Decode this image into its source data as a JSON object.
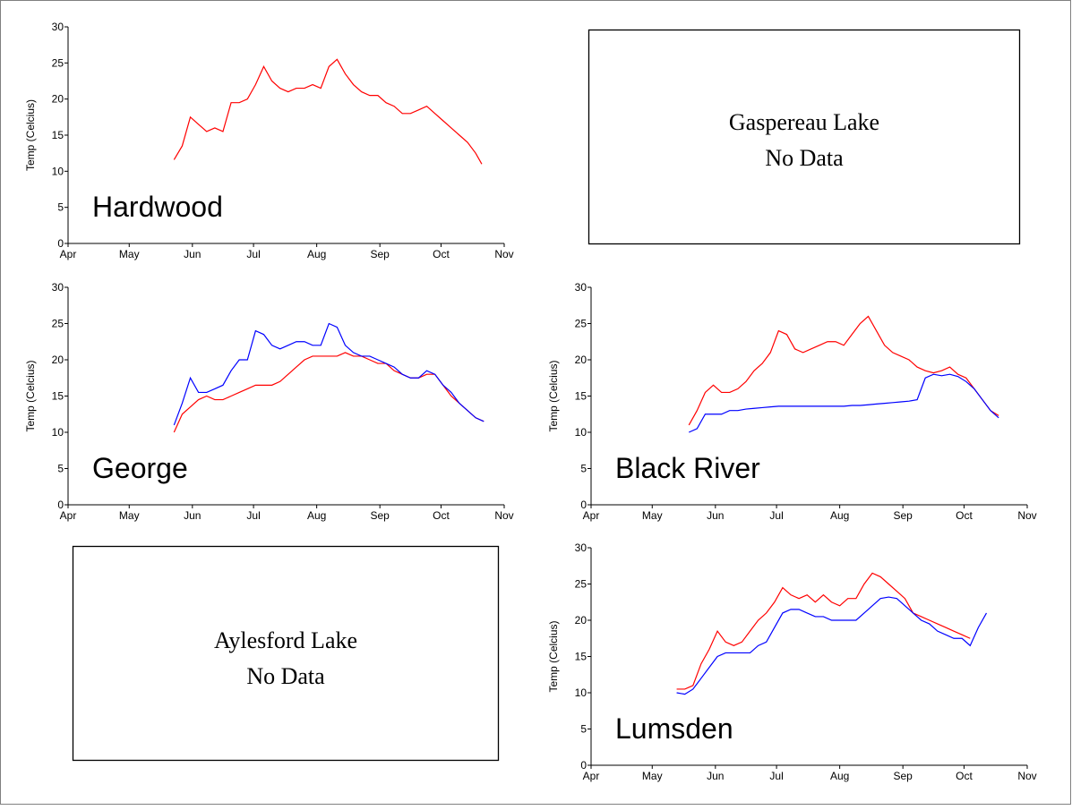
{
  "chart_data": [
    {
      "type": "line",
      "annotation": "Hardwood",
      "y_label": "Temp (Celcius)",
      "x": [
        52,
        56,
        60,
        64,
        68,
        72,
        76,
        80,
        84,
        88,
        92,
        96,
        100,
        104,
        108,
        112,
        116,
        120,
        124,
        128,
        132,
        136,
        140,
        144,
        148,
        152,
        156,
        160,
        164,
        168,
        172,
        176,
        180,
        184,
        188,
        192,
        196,
        200,
        203
      ],
      "series": [
        {
          "color": "#ff0000",
          "values": [
            11.6,
            13.5,
            17.5,
            16.5,
            15.5,
            16,
            15.5,
            19.5,
            19.5,
            20,
            22,
            24.5,
            22.5,
            21.5,
            21,
            21.5,
            21.5,
            22,
            21.5,
            24.5,
            25.5,
            23.5,
            22,
            21,
            20.5,
            20.5,
            19.5,
            19,
            18,
            18,
            18.5,
            19,
            18,
            17,
            16,
            15,
            14,
            12.5,
            11
          ]
        }
      ],
      "xlim": [
        0,
        214
      ],
      "xticks": [
        {
          "value": 0,
          "label": "Apr"
        },
        {
          "value": 30,
          "label": "May"
        },
        {
          "value": 61,
          "label": "Jun"
        },
        {
          "value": 91,
          "label": "Jul"
        },
        {
          "value": 122,
          "label": "Aug"
        },
        {
          "value": 153,
          "label": "Sep"
        },
        {
          "value": 183,
          "label": "Oct"
        },
        {
          "value": 214,
          "label": "Nov"
        }
      ],
      "ylim": [
        0,
        30
      ],
      "yticks": [
        0,
        5,
        10,
        15,
        20,
        25,
        30
      ],
      "grid": false
    },
    {
      "type": "line",
      "annotation": "George",
      "y_label": "Temp (Celcius)",
      "x": [
        52,
        56,
        60,
        64,
        68,
        72,
        76,
        80,
        84,
        88,
        92,
        96,
        100,
        104,
        108,
        112,
        116,
        120,
        124,
        128,
        132,
        136,
        140,
        144,
        148,
        152,
        156,
        160,
        164,
        168,
        172,
        176,
        180,
        184,
        188,
        192,
        196,
        200,
        204
      ],
      "series": [
        {
          "color": "#ff0000",
          "values": [
            10,
            12.5,
            13.5,
            14.5,
            15,
            14.5,
            14.5,
            15,
            15.5,
            16,
            16.5,
            16.5,
            16.5,
            17,
            18,
            19,
            20,
            20.5,
            20.5,
            20.5,
            20.5,
            21,
            20.5,
            20.5,
            20,
            19.5,
            19.5,
            18.5,
            18,
            17.5,
            17.5,
            18,
            18,
            16.5,
            15,
            14,
            13,
            12,
            11.5
          ]
        },
        {
          "color": "#0000ff",
          "values": [
            11,
            14,
            17.5,
            15.5,
            15.5,
            16,
            16.5,
            18.5,
            20,
            20,
            24,
            23.5,
            22,
            21.5,
            22,
            22.5,
            22.5,
            22,
            22,
            25,
            24.5,
            22,
            21,
            20.5,
            20.5,
            20,
            19.5,
            19,
            18,
            17.5,
            17.5,
            18.5,
            18,
            16.5,
            15.5,
            14,
            13,
            12,
            11.5
          ]
        }
      ],
      "xlim": [
        0,
        214
      ],
      "xticks": [
        {
          "value": 0,
          "label": "Apr"
        },
        {
          "value": 30,
          "label": "May"
        },
        {
          "value": 61,
          "label": "Jun"
        },
        {
          "value": 91,
          "label": "Jul"
        },
        {
          "value": 122,
          "label": "Aug"
        },
        {
          "value": 153,
          "label": "Sep"
        },
        {
          "value": 183,
          "label": "Oct"
        },
        {
          "value": 214,
          "label": "Nov"
        }
      ],
      "ylim": [
        0,
        30
      ],
      "yticks": [
        0,
        5,
        10,
        15,
        20,
        25,
        30
      ],
      "grid": false
    },
    {
      "type": "line",
      "annotation": "Black River",
      "y_label": "Temp (Celcius)",
      "x": [
        48,
        52,
        56,
        60,
        64,
        68,
        72,
        76,
        80,
        84,
        88,
        92,
        96,
        100,
        104,
        108,
        112,
        116,
        120,
        124,
        128,
        132,
        136,
        140,
        144,
        148,
        152,
        156,
        160,
        164,
        168,
        172,
        176,
        180,
        184,
        188,
        192,
        196,
        200
      ],
      "series": [
        {
          "color": "#ff0000",
          "values": [
            11,
            13,
            15.5,
            16.5,
            15.5,
            15.5,
            16,
            17,
            18.5,
            19.5,
            21,
            24,
            23.5,
            21.5,
            21,
            21.5,
            22,
            22.5,
            22.5,
            22,
            23.5,
            25,
            26,
            24,
            22,
            21,
            20.5,
            20,
            19,
            18.5,
            18.2,
            18.5,
            19,
            18,
            17.5,
            16,
            14.5,
            13,
            12.3
          ]
        },
        {
          "color": "#0000ff",
          "values": [
            10,
            10.5,
            12.5,
            12.5,
            12.5,
            13,
            13,
            13.2,
            13.3,
            13.4,
            13.5,
            13.6,
            13.6,
            13.6,
            13.6,
            13.6,
            13.6,
            13.6,
            13.6,
            13.6,
            13.7,
            13.7,
            13.8,
            13.9,
            14,
            14.1,
            14.2,
            14.3,
            14.5,
            17.5,
            18,
            17.8,
            18,
            17.7,
            17,
            16,
            14.5,
            13,
            12
          ]
        }
      ],
      "xlim": [
        0,
        214
      ],
      "xticks": [
        {
          "value": 0,
          "label": "Apr"
        },
        {
          "value": 30,
          "label": "May"
        },
        {
          "value": 61,
          "label": "Jun"
        },
        {
          "value": 91,
          "label": "Jul"
        },
        {
          "value": 122,
          "label": "Aug"
        },
        {
          "value": 153,
          "label": "Sep"
        },
        {
          "value": 183,
          "label": "Oct"
        },
        {
          "value": 214,
          "label": "Nov"
        }
      ],
      "ylim": [
        0,
        30
      ],
      "yticks": [
        0,
        5,
        10,
        15,
        20,
        25,
        30
      ],
      "grid": false
    },
    {
      "type": "line",
      "annotation": "Lumsden",
      "y_label": "Temp (Celcius)",
      "x": [
        42,
        46,
        50,
        54,
        58,
        62,
        66,
        70,
        74,
        78,
        82,
        86,
        90,
        94,
        98,
        102,
        106,
        110,
        114,
        118,
        122,
        126,
        130,
        134,
        138,
        142,
        146,
        150,
        154,
        158,
        162,
        166,
        170,
        174,
        178,
        182,
        186,
        190,
        194
      ],
      "series": [
        {
          "color": "#ff0000",
          "values": [
            10.5,
            10.5,
            11,
            14,
            16,
            18.5,
            17,
            16.5,
            17,
            18.5,
            20,
            21,
            22.5,
            24.5,
            23.5,
            23,
            23.5,
            22.5,
            23.5,
            22.5,
            22,
            23,
            23,
            25,
            26.5,
            26,
            25,
            24,
            23,
            21,
            20.5,
            20,
            19.5,
            19,
            18.5,
            18,
            17.5,
            null,
            null
          ]
        },
        {
          "color": "#0000ff",
          "values": [
            10,
            9.8,
            10.5,
            12,
            13.5,
            15,
            15.5,
            15.5,
            15.5,
            15.5,
            16.5,
            17,
            19,
            21,
            21.5,
            21.5,
            21,
            20.5,
            20.5,
            20,
            20,
            20,
            20,
            21,
            22,
            23,
            23.2,
            23,
            22,
            21,
            20,
            19.5,
            18.5,
            18,
            17.5,
            17.5,
            16.5,
            19,
            21
          ]
        }
      ],
      "xlim": [
        0,
        214
      ],
      "xticks": [
        {
          "value": 0,
          "label": "Apr"
        },
        {
          "value": 30,
          "label": "May"
        },
        {
          "value": 61,
          "label": "Jun"
        },
        {
          "value": 91,
          "label": "Jul"
        },
        {
          "value": 122,
          "label": "Aug"
        },
        {
          "value": 153,
          "label": "Sep"
        },
        {
          "value": 183,
          "label": "Oct"
        },
        {
          "value": 214,
          "label": "Nov"
        }
      ],
      "ylim": [
        0,
        30
      ],
      "yticks": [
        0,
        5,
        10,
        15,
        20,
        25,
        30
      ],
      "grid": false
    }
  ],
  "panels": [
    {
      "title": "Gaspereau Lake",
      "text": "No Data"
    },
    {
      "title": "Aylesford Lake",
      "text": "No Data"
    }
  ]
}
